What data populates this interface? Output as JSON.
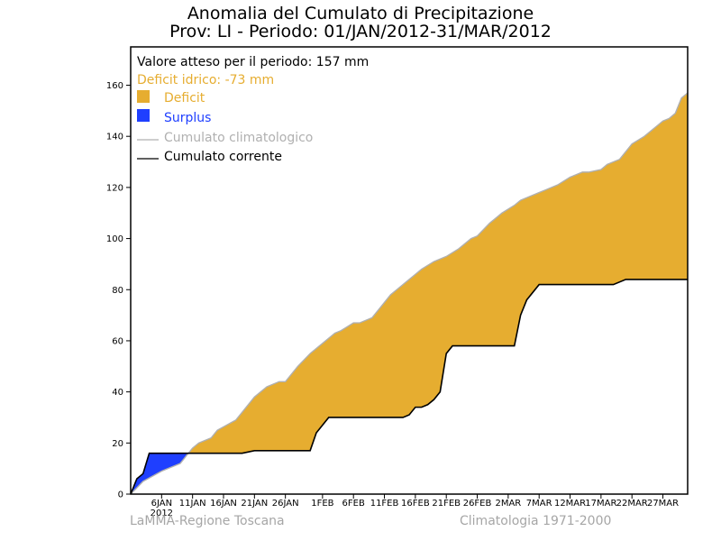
{
  "title_line1": "Anomalia del Cumulato di Precipitazione",
  "title_line2": "Prov: LI - Periodo: 01/JAN/2012-31/MAR/2012",
  "footer_left": "LaMMA-Regione Toscana",
  "footer_right": "Climatologia 1971-2000",
  "colors": {
    "deficit": "#e6ad30",
    "surplus": "#1f3fff",
    "climatological": "#b0b0b0",
    "current": "#000000"
  },
  "legend": {
    "expected": "Valore atteso per il periodo: 157 mm",
    "deficit_text": "Deficit idrico: -73 mm",
    "deficit_label": "Deficit",
    "surplus_label": "Surplus",
    "clim_label": "Cumulato climatologico",
    "curr_label": "Cumulato corrente"
  },
  "chart_data": {
    "type": "area",
    "x_unit": "day of period (1 = 01 JAN 2012)",
    "xlim": [
      1,
      91
    ],
    "ylim": [
      0,
      175
    ],
    "yticks": [
      0,
      20,
      40,
      60,
      80,
      100,
      120,
      140,
      160
    ],
    "xticks": [
      {
        "day": 6,
        "label": "6JAN",
        "sub": "2012"
      },
      {
        "day": 11,
        "label": "11JAN"
      },
      {
        "day": 16,
        "label": "16JAN"
      },
      {
        "day": 21,
        "label": "21JAN"
      },
      {
        "day": 26,
        "label": "26JAN"
      },
      {
        "day": 32,
        "label": "1FEB"
      },
      {
        "day": 37,
        "label": "6FEB"
      },
      {
        "day": 42,
        "label": "11FEB"
      },
      {
        "day": 47,
        "label": "16FEB"
      },
      {
        "day": 52,
        "label": "21FEB"
      },
      {
        "day": 57,
        "label": "26FEB"
      },
      {
        "day": 62,
        "label": "2MAR"
      },
      {
        "day": 67,
        "label": "7MAR"
      },
      {
        "day": 72,
        "label": "12MAR"
      },
      {
        "day": 77,
        "label": "17MAR"
      },
      {
        "day": 82,
        "label": "22MAR"
      },
      {
        "day": 87,
        "label": "27MAR"
      }
    ],
    "series": [
      {
        "name": "Cumulato climatologico",
        "x": [
          1,
          3,
          6,
          9,
          10,
          11,
          12,
          14,
          15,
          18,
          19,
          21,
          23,
          24,
          25,
          26,
          28,
          30,
          32,
          34,
          35,
          37,
          38,
          40,
          41,
          43,
          44,
          46,
          47,
          48,
          50,
          52,
          54,
          56,
          57,
          59,
          60,
          61,
          63,
          64,
          66,
          67,
          68,
          70,
          72,
          74,
          75,
          77,
          78,
          80,
          81,
          82,
          84,
          85,
          86,
          87,
          88,
          89,
          90,
          91
        ],
        "y": [
          0,
          5,
          9,
          12,
          15,
          18,
          20,
          22,
          25,
          29,
          32,
          38,
          42,
          43,
          44,
          44,
          50,
          55,
          59,
          63,
          64,
          67,
          67,
          69,
          72,
          78,
          80,
          84,
          86,
          88,
          91,
          93,
          96,
          100,
          101,
          106,
          108,
          110,
          113,
          115,
          117,
          118,
          119,
          121,
          124,
          126,
          126,
          127,
          129,
          131,
          134,
          137,
          140,
          142,
          144,
          146,
          147,
          149,
          155,
          157
        ]
      },
      {
        "name": "Cumulato corrente",
        "x": [
          1,
          2,
          3,
          4,
          6,
          9,
          11,
          13,
          15,
          17,
          19,
          21,
          23,
          25,
          27,
          29,
          30,
          31,
          33,
          35,
          37,
          39,
          41,
          43,
          45,
          46,
          47,
          48,
          49,
          50,
          51,
          52,
          53,
          55,
          57,
          59,
          61,
          62,
          63,
          64,
          65,
          67,
          69,
          71,
          73,
          75,
          77,
          79,
          81,
          83,
          85,
          87,
          89,
          91
        ],
        "y": [
          0,
          6,
          8,
          16,
          16,
          16,
          16,
          16,
          16,
          16,
          16,
          17,
          17,
          17,
          17,
          17,
          17,
          24,
          30,
          30,
          30,
          30,
          30,
          30,
          30,
          31,
          34,
          34,
          35,
          37,
          40,
          55,
          58,
          58,
          58,
          58,
          58,
          58,
          58,
          70,
          76,
          82,
          82,
          82,
          82,
          82,
          82,
          82,
          84,
          84,
          84,
          84,
          84,
          84
        ]
      }
    ]
  }
}
